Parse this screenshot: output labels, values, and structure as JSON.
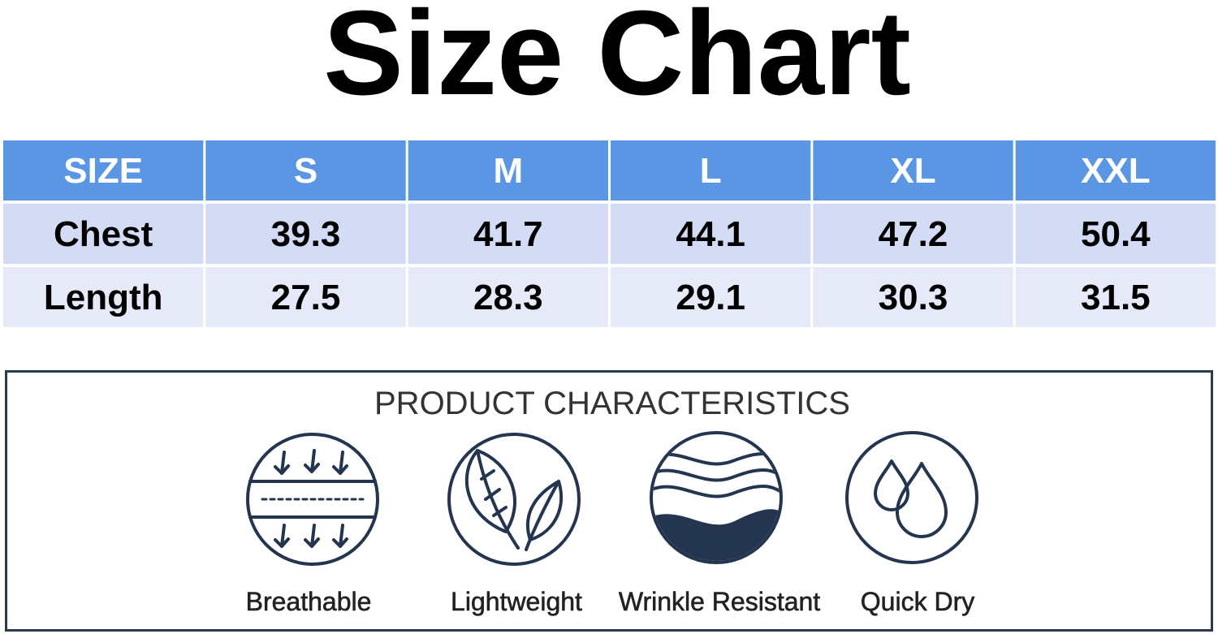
{
  "header": {
    "title": "Size Chart"
  },
  "table": {
    "columns": [
      "SIZE",
      "S",
      "M",
      "L",
      "XL",
      "XXL"
    ],
    "rows": [
      [
        "Chest",
        39.3,
        41.7,
        44.1,
        47.2,
        50.4
      ],
      [
        "Length",
        27.5,
        28.3,
        29.1,
        30.3,
        31.5
      ]
    ]
  },
  "characteristics": {
    "title": "PRODUCT CHARACTERISTICS",
    "items": [
      "Breathable",
      "Lightweight",
      "Wrinkle Resistant",
      "Quick Dry"
    ]
  }
}
